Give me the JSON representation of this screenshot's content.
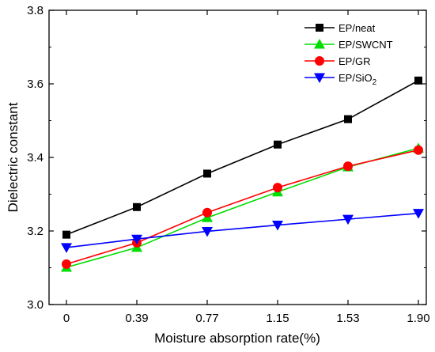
{
  "chart_data": {
    "type": "line",
    "title": "",
    "xlabel": "Moisture absorption rate(%)",
    "ylabel": "Dielectric constant",
    "categories": [
      "0",
      "0.39",
      "0.77",
      "1.15",
      "1.53",
      "1.90"
    ],
    "ylim": [
      3.0,
      3.8
    ],
    "yticks": [
      "3.0",
      "3.2",
      "3.4",
      "3.6",
      "3.8"
    ],
    "grid": false,
    "legend_position": "top-right",
    "series": [
      {
        "name": "EP/neat",
        "legend_main": "EP/neat",
        "legend_sub": "",
        "color": "#000000",
        "marker": "square",
        "values": [
          3.19,
          3.265,
          3.356,
          3.435,
          3.504,
          3.609
        ]
      },
      {
        "name": "EP/SWCNT",
        "legend_main": "EP/SWCNT",
        "legend_sub": "",
        "color": "#00dd00",
        "marker": "triangle-up",
        "values": [
          3.101,
          3.155,
          3.236,
          3.306,
          3.374,
          3.425
        ]
      },
      {
        "name": "EP/GR",
        "legend_main": "EP/GR",
        "legend_sub": "",
        "color": "#ff0000",
        "marker": "circle",
        "values": [
          3.11,
          3.168,
          3.25,
          3.318,
          3.376,
          3.42
        ]
      },
      {
        "name": "EP/SiO2",
        "legend_main": "EP/SiO",
        "legend_sub": "2",
        "color": "#0000ff",
        "marker": "triangle-down",
        "values": [
          3.155,
          3.178,
          3.199,
          3.216,
          3.232,
          3.248
        ]
      }
    ]
  }
}
